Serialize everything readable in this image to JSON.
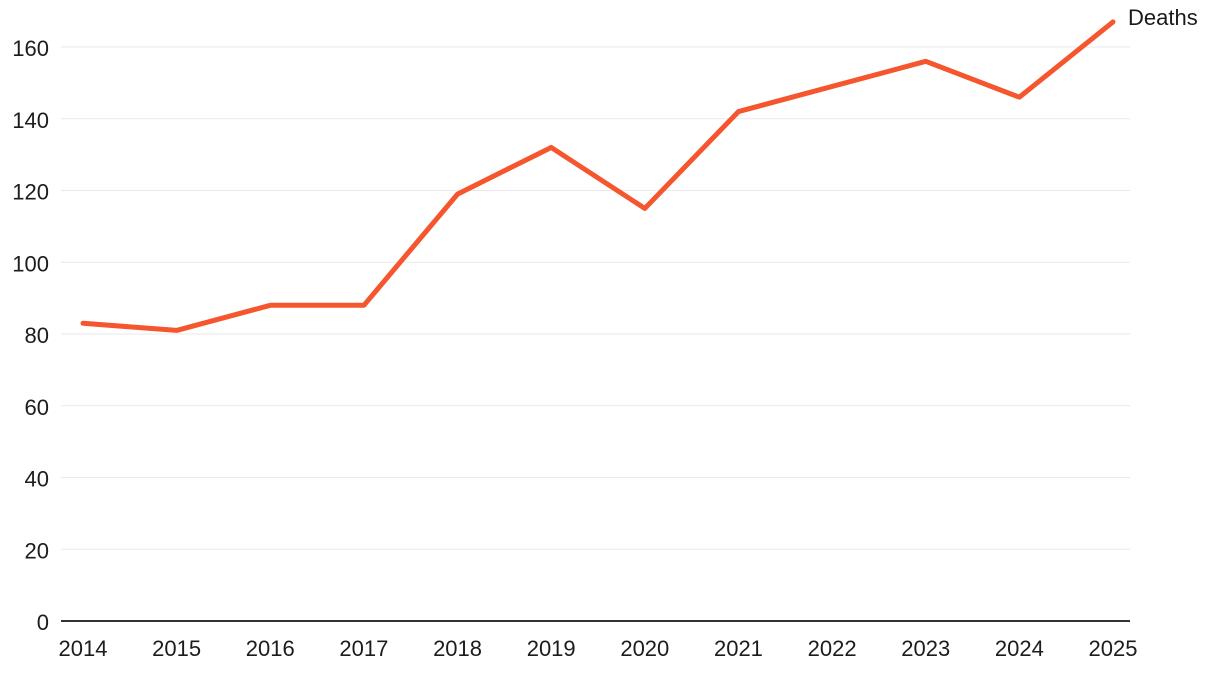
{
  "chart_data": {
    "type": "line",
    "x": [
      2014,
      2015,
      2016,
      2017,
      2018,
      2019,
      2020,
      2021,
      2022,
      2023,
      2024,
      2025
    ],
    "series": [
      {
        "name": "Deaths",
        "values": [
          83,
          81,
          88,
          88,
          119,
          132,
          115,
          142,
          149,
          156,
          146,
          167
        ],
        "color": "#F5562E"
      }
    ],
    "title": "",
    "xlabel": "",
    "ylabel": "",
    "y_ticks": [
      0,
      20,
      40,
      60,
      80,
      100,
      120,
      140,
      160
    ],
    "ylim": [
      0,
      172
    ],
    "grid": true,
    "legend_position": "line-end-label",
    "end_label": "Deaths"
  },
  "colors": {
    "background": "#FFFFFF",
    "gridline": "#E9E9E9",
    "axis_line": "#333333",
    "tick_text": "#1C1C1C",
    "line": "#F5562E",
    "end_label_text": "#1A1A1A"
  }
}
